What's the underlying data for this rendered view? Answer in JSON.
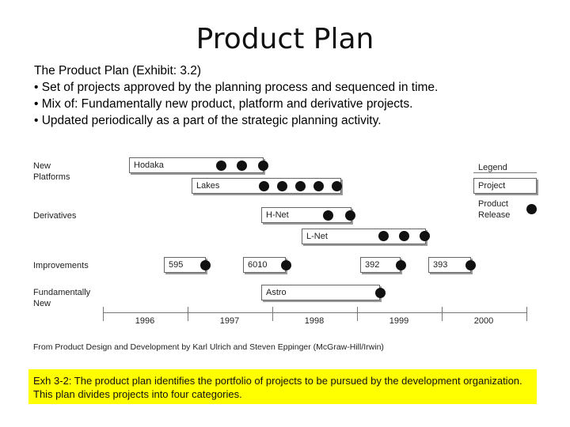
{
  "title": "Product Plan",
  "bullets": [
    "The Product Plan (Exhibit: 3.2)",
    "• Set of projects approved by the planning process and sequenced in time.",
    "• Mix of: Fundamentally new product, platform and derivative projects.",
    "• Updated periodically as a part of the strategic planning activity."
  ],
  "row_labels": {
    "new_platforms": "New\nPlatforms",
    "derivatives": "Derivatives",
    "improvements": "Improvements",
    "fundamentally_new": "Fundamentally\nNew"
  },
  "projects": {
    "hodaka": "Hodaka",
    "lakes": "Lakes",
    "hnet": "H-Net",
    "lnet": "L-Net",
    "p595": "595",
    "p6010": "6010",
    "p392": "392",
    "p393": "393",
    "astro": "Astro"
  },
  "legend": {
    "title": "Legend",
    "project": "Project",
    "release": "Product\nRelease"
  },
  "years": [
    "1996",
    "1997",
    "1998",
    "1999",
    "2000"
  ],
  "source": "From Product Design and Development by Karl Ulrich and Steven Eppinger (McGraw-Hill/Irwin)",
  "caption": "Exh 3-2: The product plan identifies the portfolio of projects to be pursued by the development organization. This plan divides projects into four categories.",
  "colors": {
    "caption_bg": "#ffff00",
    "dot": "#111111"
  }
}
